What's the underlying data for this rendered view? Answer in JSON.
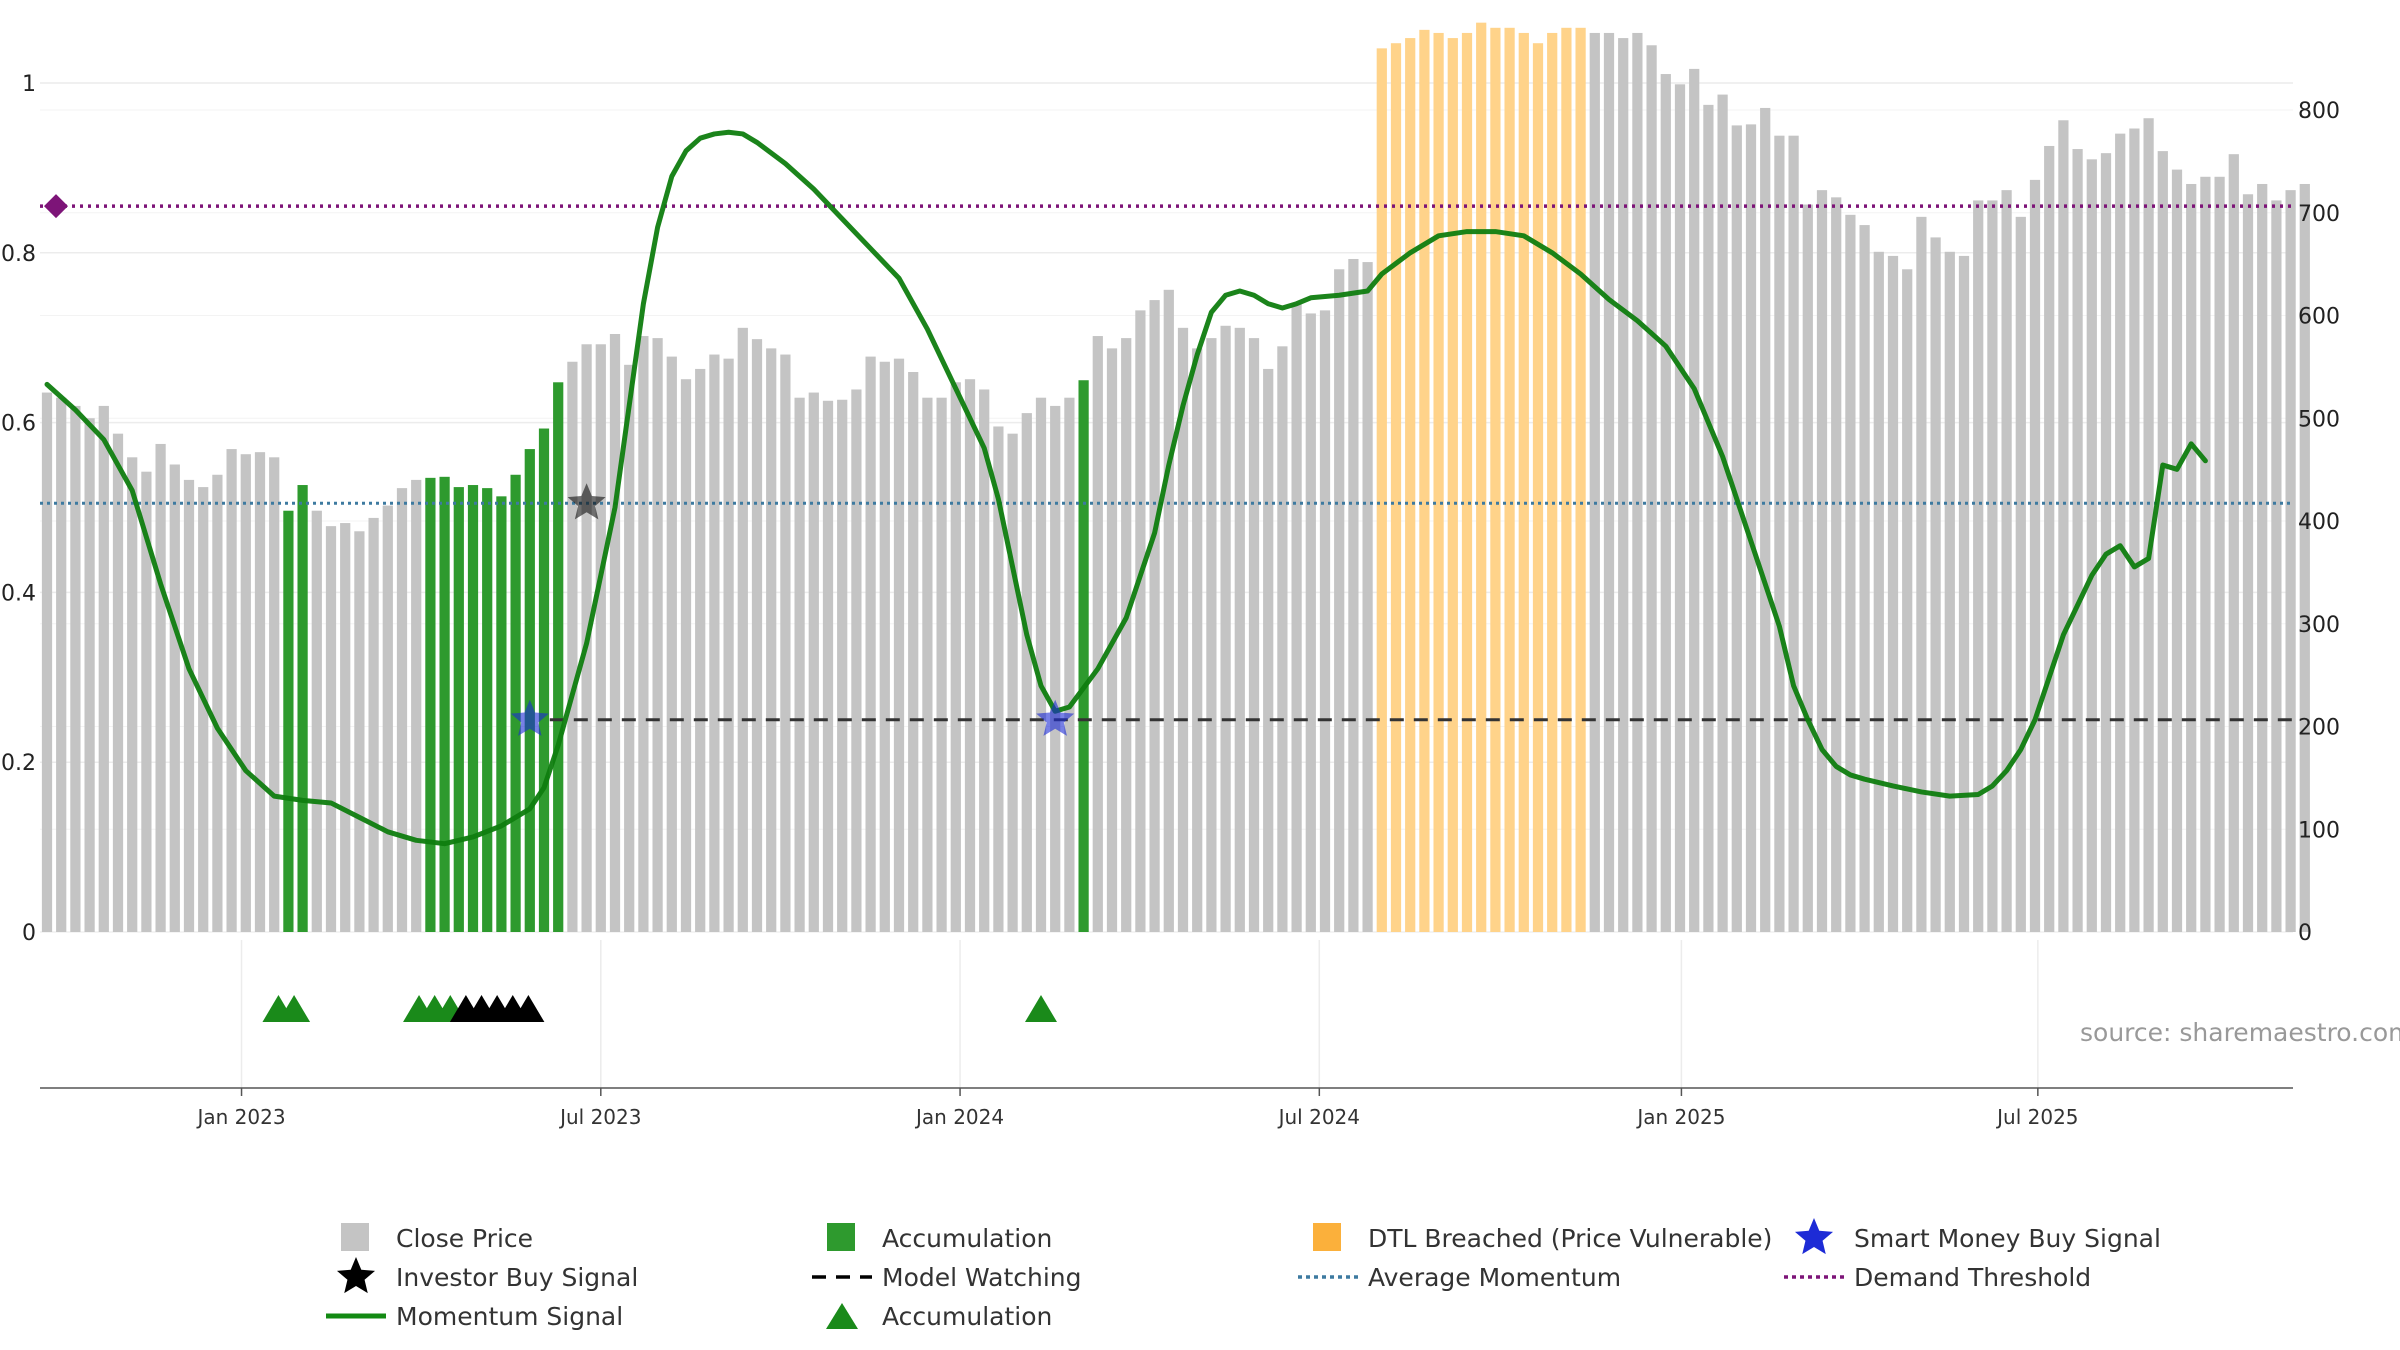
{
  "chart_data": {
    "type": "bar",
    "title": "",
    "source": "source: sharemaestro.com",
    "left_axis": {
      "range": [
        0,
        1
      ],
      "ticks": [
        0,
        0.2,
        0.4,
        0.6,
        0.8,
        1
      ],
      "tick_labels": [
        "0",
        "0.2",
        "0.4",
        "0.6",
        "0.8",
        "1"
      ]
    },
    "right_axis": {
      "range": [
        0,
        800
      ],
      "ticks": [
        0,
        100,
        200,
        300,
        400,
        500,
        600,
        700,
        800
      ],
      "tick_labels": [
        "0",
        "100",
        "200",
        "300",
        "400",
        "500",
        "600",
        "700",
        "800"
      ]
    },
    "x_axis": {
      "start_week": 0,
      "end_week": 152,
      "ticks": [
        {
          "label": "Jan 2023",
          "week": 13.7
        },
        {
          "label": "Jul 2023",
          "week": 39.0
        },
        {
          "label": "Jan 2024",
          "week": 64.3
        },
        {
          "label": "Jul 2024",
          "week": 89.6
        },
        {
          "label": "Jan 2025",
          "week": 115.1
        },
        {
          "label": "Jul 2025",
          "week": 140.2
        }
      ]
    },
    "close_price": [
      525,
      520,
      512,
      500,
      512,
      485,
      462,
      448,
      475,
      455,
      440,
      433,
      445,
      470,
      465,
      467,
      462,
      410,
      435,
      410,
      395,
      398,
      390,
      403,
      415,
      432,
      440,
      442,
      443,
      433,
      435,
      432,
      424,
      445,
      470,
      490,
      535,
      555,
      572,
      572,
      582,
      552,
      580,
      578,
      560,
      538,
      548,
      562,
      558,
      588,
      577,
      568,
      562,
      520,
      525,
      517,
      518,
      528,
      560,
      555,
      558,
      545,
      520,
      520,
      535,
      538,
      528,
      492,
      485,
      505,
      520,
      512,
      520,
      537,
      580,
      568,
      578,
      605,
      615,
      625,
      588,
      568,
      578,
      590,
      588,
      578,
      548,
      570,
      612,
      602,
      605,
      645,
      655,
      652,
      860,
      865,
      870,
      878,
      875,
      870,
      875,
      885,
      880,
      880,
      875,
      865,
      875,
      880,
      880,
      875,
      875,
      870,
      875,
      863,
      835,
      825,
      840,
      805,
      815,
      785,
      786,
      802,
      775,
      775,
      708,
      722,
      715,
      698,
      688,
      662,
      658,
      645,
      696,
      676,
      662,
      658,
      712,
      712,
      722,
      696,
      732,
      765,
      790,
      762,
      752,
      758,
      777,
      782,
      792,
      760,
      742,
      728,
      735,
      735,
      757,
      718,
      728,
      712,
      722,
      728
    ],
    "categories_weeks": "weekly bars, index 0 to 152",
    "accumulation_bars": [
      17,
      18,
      27,
      28,
      29,
      30,
      31,
      32,
      33,
      34,
      35,
      36,
      73
    ],
    "dtl_breached_range": [
      94,
      108
    ],
    "momentum_signal": [
      [
        0,
        0.645
      ],
      [
        2,
        0.615
      ],
      [
        4,
        0.58
      ],
      [
        6,
        0.52
      ],
      [
        8,
        0.41
      ],
      [
        10,
        0.31
      ],
      [
        12,
        0.24
      ],
      [
        14,
        0.19
      ],
      [
        16,
        0.16
      ],
      [
        18,
        0.155
      ],
      [
        20,
        0.152
      ],
      [
        22,
        0.135
      ],
      [
        24,
        0.118
      ],
      [
        26,
        0.108
      ],
      [
        28,
        0.104
      ],
      [
        30,
        0.112
      ],
      [
        32,
        0.125
      ],
      [
        34,
        0.145
      ],
      [
        35,
        0.17
      ],
      [
        36,
        0.22
      ],
      [
        38,
        0.34
      ],
      [
        40,
        0.5
      ],
      [
        41,
        0.62
      ],
      [
        42,
        0.74
      ],
      [
        43,
        0.83
      ],
      [
        44,
        0.89
      ],
      [
        45,
        0.92
      ],
      [
        46,
        0.935
      ],
      [
        47,
        0.94
      ],
      [
        48,
        0.942
      ],
      [
        49,
        0.94
      ],
      [
        50,
        0.93
      ],
      [
        52,
        0.905
      ],
      [
        54,
        0.875
      ],
      [
        56,
        0.84
      ],
      [
        58,
        0.805
      ],
      [
        60,
        0.77
      ],
      [
        62,
        0.71
      ],
      [
        64,
        0.64
      ],
      [
        66,
        0.57
      ],
      [
        67,
        0.51
      ],
      [
        68,
        0.43
      ],
      [
        69,
        0.35
      ],
      [
        70,
        0.29
      ],
      [
        71,
        0.26
      ],
      [
        72,
        0.265
      ],
      [
        74,
        0.31
      ],
      [
        76,
        0.37
      ],
      [
        78,
        0.47
      ],
      [
        79,
        0.55
      ],
      [
        80,
        0.62
      ],
      [
        81,
        0.68
      ],
      [
        82,
        0.73
      ],
      [
        83,
        0.75
      ],
      [
        84,
        0.755
      ],
      [
        85,
        0.75
      ],
      [
        86,
        0.74
      ],
      [
        87,
        0.735
      ],
      [
        88,
        0.74
      ],
      [
        89,
        0.747
      ],
      [
        91,
        0.75
      ],
      [
        93,
        0.755
      ],
      [
        94,
        0.775
      ],
      [
        96,
        0.8
      ],
      [
        98,
        0.82
      ],
      [
        100,
        0.825
      ],
      [
        102,
        0.825
      ],
      [
        104,
        0.82
      ],
      [
        106,
        0.8
      ],
      [
        108,
        0.775
      ],
      [
        110,
        0.745
      ],
      [
        112,
        0.72
      ],
      [
        114,
        0.69
      ],
      [
        116,
        0.64
      ],
      [
        118,
        0.56
      ],
      [
        120,
        0.46
      ],
      [
        122,
        0.36
      ],
      [
        123,
        0.29
      ],
      [
        124,
        0.25
      ],
      [
        125,
        0.215
      ],
      [
        126,
        0.195
      ],
      [
        127,
        0.185
      ],
      [
        128,
        0.18
      ],
      [
        130,
        0.172
      ],
      [
        132,
        0.165
      ],
      [
        134,
        0.16
      ],
      [
        136,
        0.162
      ],
      [
        137,
        0.172
      ],
      [
        138,
        0.19
      ],
      [
        139,
        0.215
      ],
      [
        140,
        0.25
      ],
      [
        141,
        0.3
      ],
      [
        142,
        0.35
      ],
      [
        143,
        0.385
      ],
      [
        144,
        0.42
      ],
      [
        145,
        0.445
      ],
      [
        146,
        0.455
      ],
      [
        147,
        0.43
      ],
      [
        148,
        0.44
      ],
      [
        149,
        0.55
      ],
      [
        150,
        0.545
      ],
      [
        151,
        0.575
      ],
      [
        152,
        0.555
      ]
    ],
    "average_momentum": 0.505,
    "demand_threshold": 0.855,
    "model_watching": {
      "value": 0.25,
      "from_week": 34
    },
    "investor_buy_signals": [
      {
        "week": 38,
        "value": 0.505
      }
    ],
    "smart_money_buy_signals": [
      {
        "week": 34,
        "value": 0.25
      },
      {
        "week": 71,
        "value": 0.25
      }
    ],
    "accumulation_markers": [
      16.3,
      17.4,
      26.2,
      27.3,
      28.4
    ],
    "black_markers": [
      29.5,
      30.6,
      31.7,
      32.8,
      33.9
    ],
    "accumulation_marker_single": 70,
    "legend": [
      {
        "label": "Close Price",
        "symbol": "gray-square"
      },
      {
        "label": "Accumulation",
        "symbol": "green-square"
      },
      {
        "label": "DTL Breached (Price Vulnerable)",
        "symbol": "orange-square"
      },
      {
        "label": "Smart Money Buy Signal",
        "symbol": "blue-star"
      },
      {
        "label": "Investor Buy Signal",
        "symbol": "black-star"
      },
      {
        "label": "Model Watching",
        "symbol": "black-dash"
      },
      {
        "label": "Average Momentum",
        "symbol": "blue-dots"
      },
      {
        "label": "Demand Threshold",
        "symbol": "purple-dots"
      },
      {
        "label": "Momentum Signal",
        "symbol": "green-line"
      },
      {
        "label": "Accumulation",
        "symbol": "green-triangle"
      }
    ],
    "colors": {
      "close_price": "#c4c4c4",
      "accumulation": "#2e9a2e",
      "dtl": "#ffd38a",
      "momentum": "#0f7d0f",
      "average_momentum": "#3d7aa0",
      "demand_threshold": "#7d1478",
      "model_watching": "#333333",
      "smart_money": "#1d2bd6",
      "investor": "#111111",
      "triangle_green": "#1a8a1a"
    }
  }
}
